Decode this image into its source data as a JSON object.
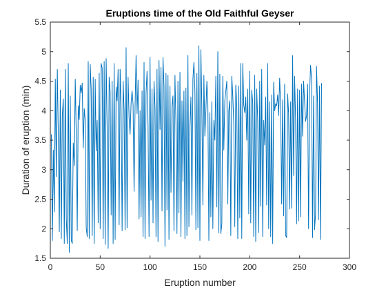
{
  "chart_data": {
    "type": "line",
    "title": "Eruptions time of the Old Faithful Geyser",
    "xlabel": "Eruption number",
    "ylabel": "Duration of eruption (min)",
    "xlim": [
      0,
      300
    ],
    "ylim": [
      1.5,
      5.5
    ],
    "xticks": [
      0,
      50,
      100,
      150,
      200,
      250,
      300
    ],
    "yticks": [
      1.5,
      2,
      2.5,
      3,
      3.5,
      4,
      4.5,
      5,
      5.5
    ],
    "grid": false,
    "legend": "none",
    "series": [
      {
        "color": "#0072bd",
        "x": [
          1,
          2,
          3,
          4,
          5,
          6,
          7,
          8,
          9,
          10,
          11,
          12,
          13,
          14,
          15,
          16,
          17,
          18,
          19,
          20,
          21,
          22,
          23,
          24,
          25,
          26,
          27,
          28,
          29,
          30,
          31,
          32,
          33,
          34,
          35,
          36,
          37,
          38,
          39,
          40,
          41,
          42,
          43,
          44,
          45,
          46,
          47,
          48,
          49,
          50,
          51,
          52,
          53,
          54,
          55,
          56,
          57,
          58,
          59,
          60,
          61,
          62,
          63,
          64,
          65,
          66,
          67,
          68,
          69,
          70,
          71,
          72,
          73,
          74,
          75,
          76,
          77,
          78,
          79,
          80,
          81,
          82,
          83,
          84,
          85,
          86,
          87,
          88,
          89,
          90,
          91,
          92,
          93,
          94,
          95,
          96,
          97,
          98,
          99,
          100,
          101,
          102,
          103,
          104,
          105,
          106,
          107,
          108,
          109,
          110,
          111,
          112,
          113,
          114,
          115,
          116,
          117,
          118,
          119,
          120,
          121,
          122,
          123,
          124,
          125,
          126,
          127,
          128,
          129,
          130,
          131,
          132,
          133,
          134,
          135,
          136,
          137,
          138,
          139,
          140,
          141,
          142,
          143,
          144,
          145,
          146,
          147,
          148,
          149,
          150,
          151,
          152,
          153,
          154,
          155,
          156,
          157,
          158,
          159,
          160,
          161,
          162,
          163,
          164,
          165,
          166,
          167,
          168,
          169,
          170,
          171,
          172,
          173,
          174,
          175,
          176,
          177,
          178,
          179,
          180,
          181,
          182,
          183,
          184,
          185,
          186,
          187,
          188,
          189,
          190,
          191,
          192,
          193,
          194,
          195,
          196,
          197,
          198,
          199,
          200,
          201,
          202,
          203,
          204,
          205,
          206,
          207,
          208,
          209,
          210,
          211,
          212,
          213,
          214,
          215,
          216,
          217,
          218,
          219,
          220,
          221,
          222,
          223,
          224,
          225,
          226,
          227,
          228,
          229,
          230,
          231,
          232,
          233,
          234,
          235,
          236,
          237,
          238,
          239,
          240,
          241,
          242,
          243,
          244,
          245,
          246,
          247,
          248,
          249,
          250,
          251,
          252,
          253,
          254,
          255,
          256,
          257,
          258,
          259,
          260,
          261,
          262,
          263,
          264,
          265,
          266,
          267,
          268,
          269,
          270,
          271,
          272
        ],
        "y": [
          3.6,
          1.8,
          3.333,
          2.283,
          4.533,
          2.883,
          4.7,
          3.6,
          1.95,
          4.35,
          1.833,
          3.917,
          4.2,
          1.75,
          4.7,
          2.167,
          1.75,
          4.8,
          1.6,
          4.25,
          1.8,
          1.75,
          3.45,
          3.067,
          4.533,
          3.6,
          1.967,
          4.083,
          3.85,
          4.433,
          4.3,
          4.467,
          3.367,
          4.033,
          3.833,
          2.017,
          1.867,
          4.833,
          1.833,
          4.783,
          4.35,
          1.883,
          4.567,
          1.75,
          4.533,
          3.317,
          3.833,
          2.1,
          4.633,
          2,
          4.8,
          4.716,
          1.833,
          4.833,
          1.733,
          4.883,
          3.717,
          1.667,
          4.567,
          4.317,
          2.233,
          4.5,
          1.75,
          4.8,
          1.817,
          4.4,
          4.167,
          4.7,
          2.067,
          4.7,
          4.033,
          1.967,
          4.5,
          4,
          1.983,
          5.067,
          2.017,
          4.567,
          3.883,
          3.6,
          4.133,
          4.333,
          4.1,
          2.633,
          4.067,
          4.933,
          3.95,
          4.517,
          2.167,
          4,
          2.2,
          4.333,
          1.867,
          4.817,
          1.833,
          4.3,
          4.667,
          3.75,
          1.867,
          4.9,
          2.483,
          4.367,
          2.1,
          4.5,
          4.05,
          1.867,
          4.7,
          1.783,
          4.85,
          3.683,
          4.733,
          2.3,
          4.9,
          4.417,
          1.7,
          4.633,
          2.317,
          4.6,
          1.817,
          4.417,
          2.617,
          4.067,
          4.25,
          1.967,
          4.6,
          3.767,
          1.917,
          4.5,
          2.267,
          4.65,
          1.867,
          4.167,
          2.8,
          4.333,
          1.833,
          4.383,
          1.883,
          4.933,
          2.033,
          3.733,
          4.233,
          2.233,
          4.533,
          4.817,
          4.333,
          1.983,
          4.633,
          2.017,
          5.1,
          1.8,
          5.033,
          4,
          2.4,
          4.6,
          3.567,
          4,
          4.5,
          4.083,
          1.8,
          3.967,
          2.2,
          4.15,
          2,
          3.833,
          3.5,
          4.583,
          2.367,
          5,
          1.933,
          4.617,
          1.917,
          2.083,
          4.583,
          3.333,
          4.167,
          4.333,
          4.5,
          2.417,
          4,
          4.167,
          1.883,
          4.583,
          4.25,
          3.767,
          2.033,
          4.433,
          4.083,
          1.833,
          4.417,
          2.183,
          4.8,
          1.833,
          4.8,
          4.1,
          3.966,
          4.233,
          3.5,
          4.366,
          2.25,
          4.667,
          2.1,
          4.35,
          4.133,
          1.867,
          4.6,
          1.783,
          4.367,
          3.85,
          1.933,
          4.5,
          2.383,
          4.7,
          1.867,
          3.833,
          3.417,
          4.233,
          2.4,
          4.8,
          2,
          4.15,
          1.867,
          4.267,
          1.75,
          4.483,
          4,
          4.117,
          4.083,
          4.267,
          3.917,
          4.55,
          4.083,
          2.417,
          4.183,
          2.217,
          4.45,
          1.883,
          1.85,
          4.283,
          3.95,
          2.333,
          4.15,
          2.35,
          4.933,
          2.9,
          4.583,
          3.833,
          2.083,
          4.367,
          2.133,
          4.35,
          2.2,
          4.45,
          3.567,
          4.5,
          4.15,
          3.817,
          3.917,
          4.45,
          2,
          4.283,
          4.767,
          4.533,
          1.85,
          4.25,
          1.983,
          2.25,
          4.75,
          4.117,
          2.15,
          4.417,
          1.817,
          4.467
        ]
      }
    ]
  }
}
